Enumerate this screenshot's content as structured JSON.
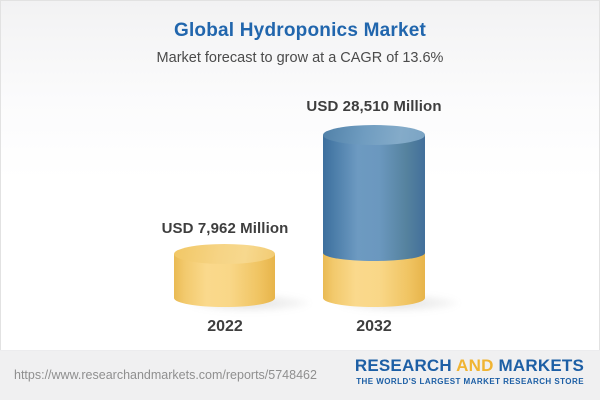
{
  "header": {
    "title": "Global Hydroponics Market",
    "subtitle": "Market forecast to grow at a CAGR of 13.6%"
  },
  "chart_data": {
    "type": "bar",
    "variant": "3d-cylinder",
    "categories": [
      "2022",
      "2032"
    ],
    "values": [
      7962,
      28510
    ],
    "unit": "USD Million",
    "value_labels": [
      "USD 7,962 Million",
      "USD 28,510 Million"
    ],
    "title": "Global Hydroponics Market",
    "subtitle": "Market forecast to grow at a CAGR of 13.6%",
    "cagr_percent": 13.6,
    "xlabel": "",
    "ylabel": "",
    "legend": "none",
    "grid": false,
    "notes": "2032 cylinder is blue with a yellow base segment equal to the 2022 value",
    "colors": {
      "bar_2022": "#f3cc74",
      "bar_2032": "#5b8ab5",
      "bar_2032_base": "#f3cc74"
    }
  },
  "bars": [
    {
      "year": "2022",
      "value_label": "USD 7,962 Million"
    },
    {
      "year": "2032",
      "value_label": "USD 28,510 Million"
    }
  ],
  "footer": {
    "url": "https://www.researchandmarkets.com/reports/5748462",
    "logo": {
      "research": "RESEARCH ",
      "and": "AND",
      "markets": " MARKETS",
      "tagline": "THE WORLD'S LARGEST MARKET RESEARCH STORE"
    }
  },
  "colors": {
    "title_blue": "#2166ad",
    "text_dark": "#3e3e3e",
    "logo_blue": "#1d5fa5",
    "logo_gold": "#f0b433",
    "footer_bg": "#f0f0f1"
  }
}
